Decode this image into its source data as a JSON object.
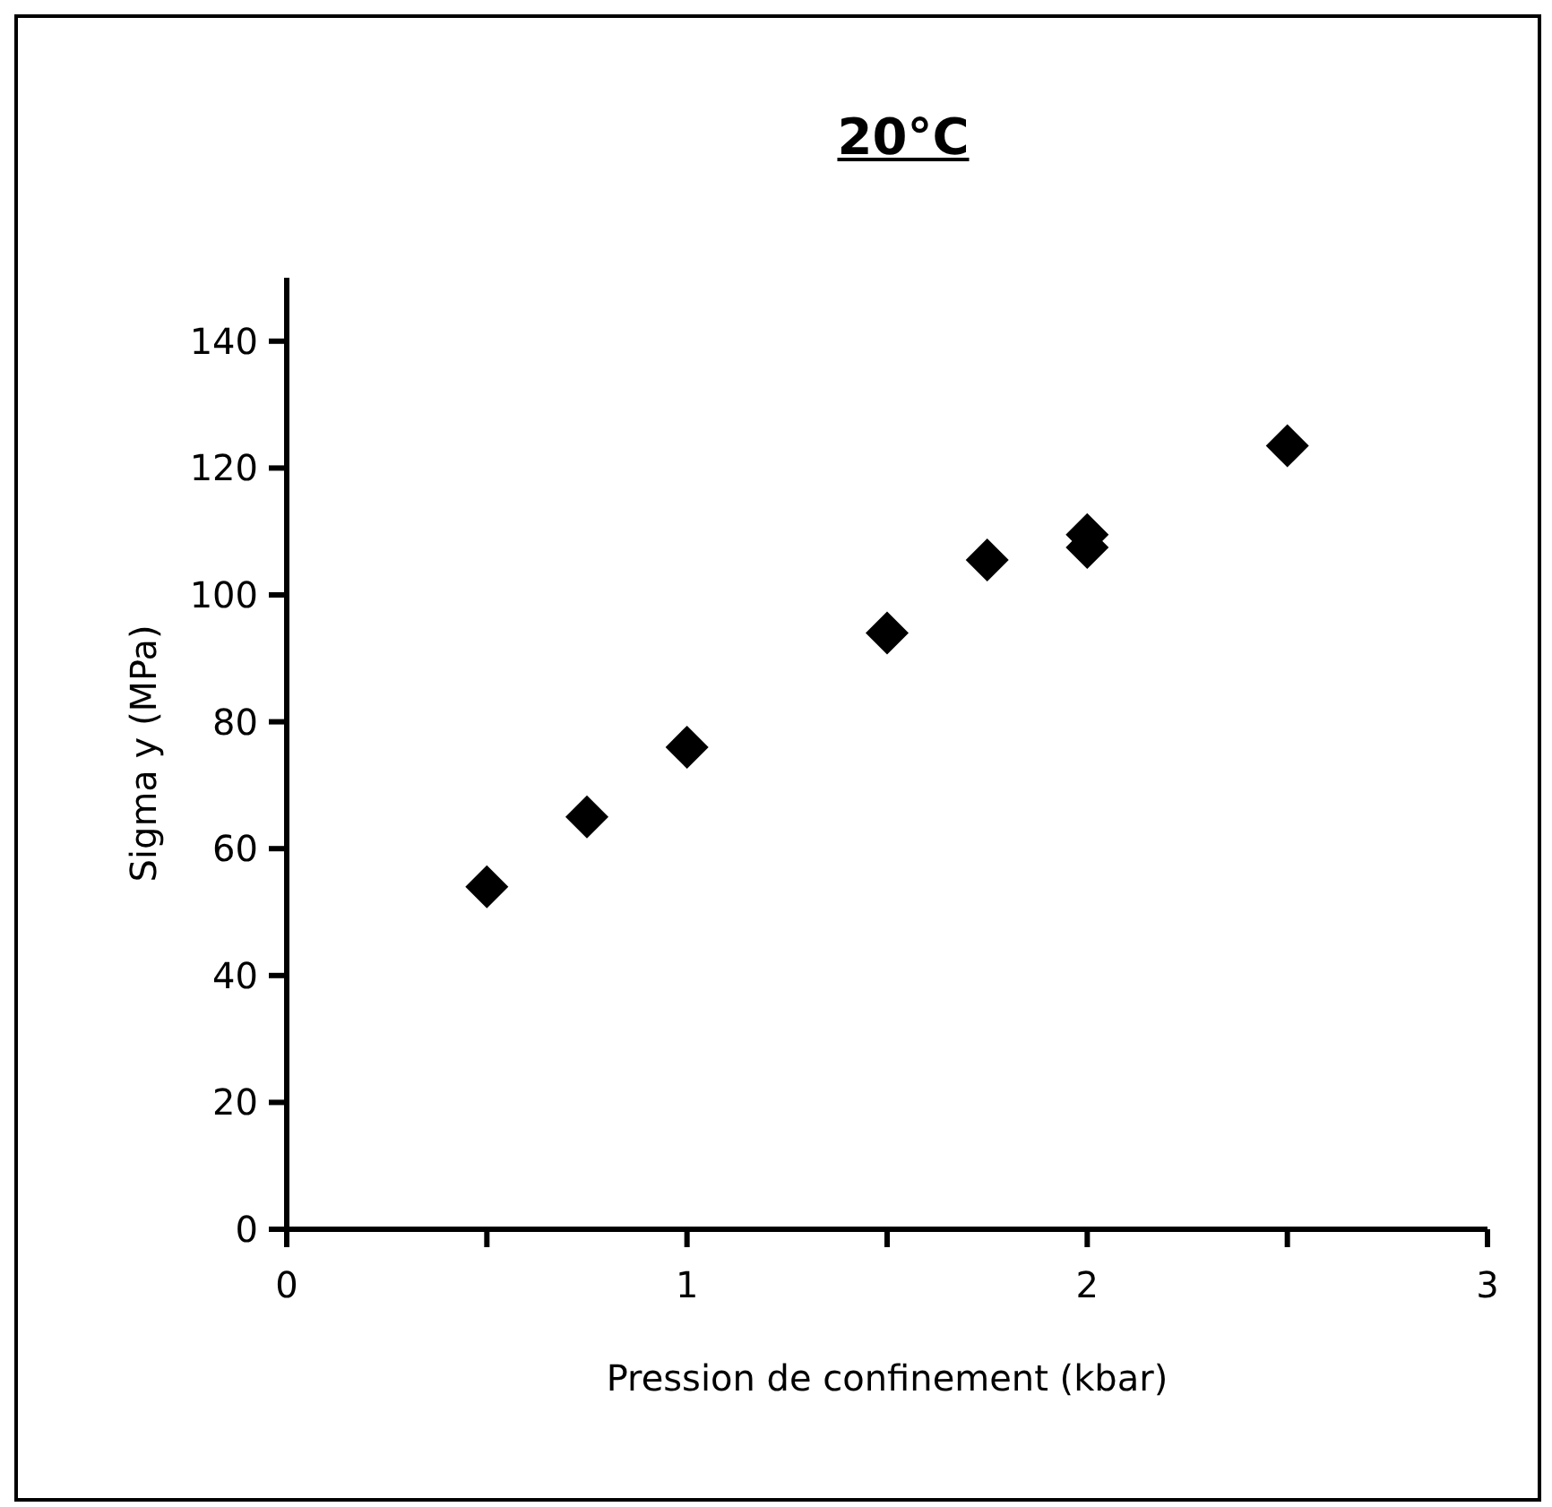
{
  "chart_data": {
    "type": "scatter",
    "title": "20°C",
    "xlabel": "Pression de confinement (kbar)",
    "ylabel": "Sigma y (MPa)",
    "x": [
      0.5,
      0.75,
      1.0,
      1.5,
      1.75,
      2.0,
      2.0,
      2.5
    ],
    "values": [
      54,
      65,
      76,
      94,
      105.5,
      109.5,
      107.5,
      123.5
    ],
    "color": "#000000",
    "marker": "diamond",
    "xlim": [
      0,
      3
    ],
    "xticks": [
      0,
      {
        "value": 0.5,
        "label": null
      },
      1,
      {
        "value": 1.5,
        "label": null
      },
      2,
      {
        "value": 2.5,
        "label": null
      },
      3
    ],
    "ylim": [
      0,
      150
    ],
    "yticks": [
      0,
      20,
      40,
      60,
      80,
      100,
      120,
      140
    ],
    "grid": false,
    "legend": false
  }
}
